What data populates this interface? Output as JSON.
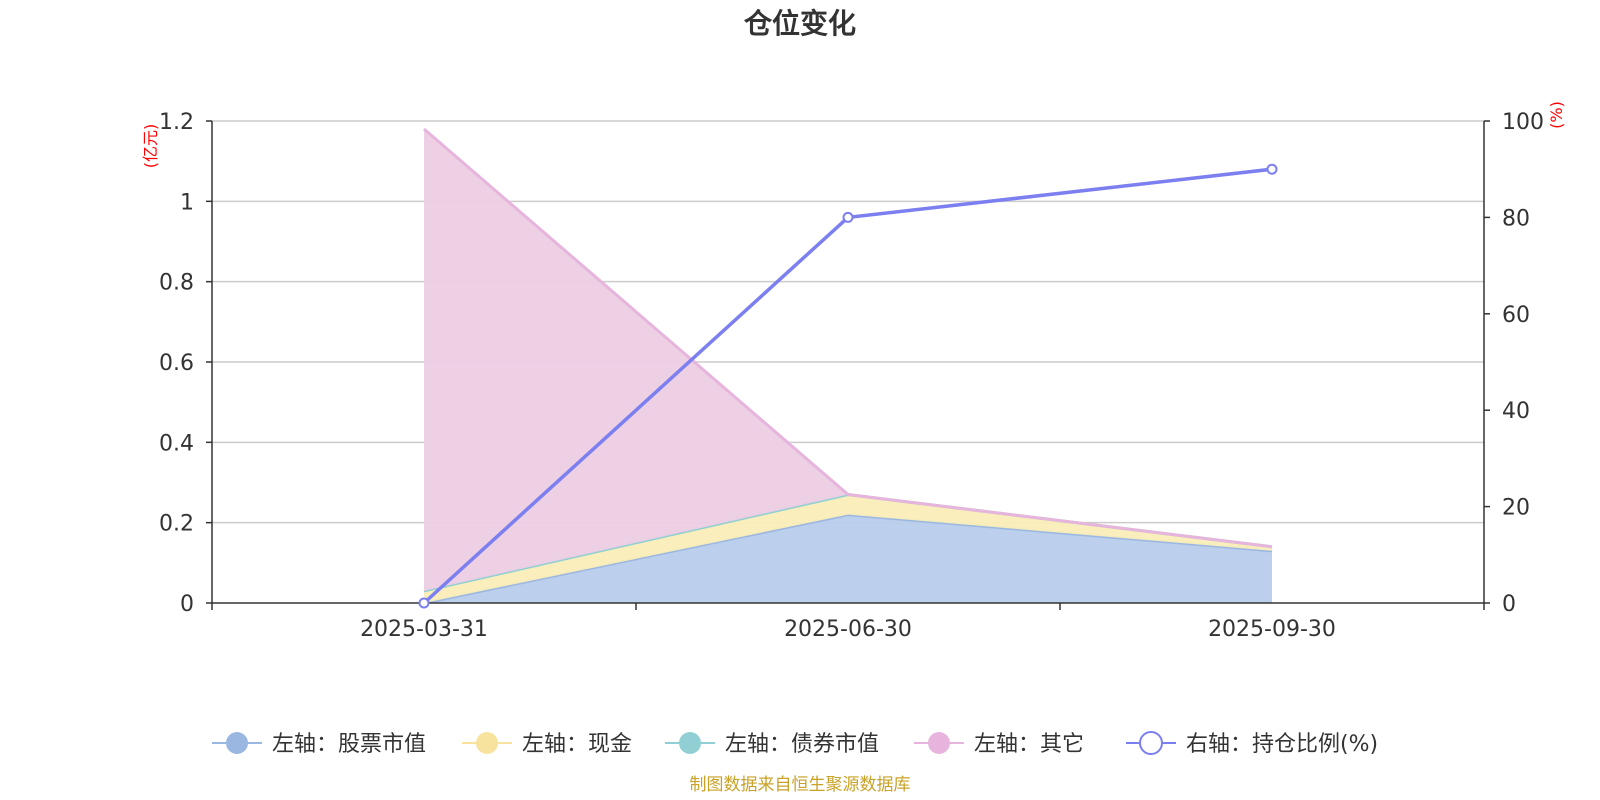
{
  "chart_data": {
    "type": "area",
    "title": "仓位变化",
    "categories": [
      "2025-03-31",
      "2025-06-30",
      "2025-09-30"
    ],
    "left_axis": {
      "unit": "(亿元)",
      "ylim": [
        0,
        1.2
      ],
      "ticks": [
        0,
        0.2,
        0.4,
        0.6,
        0.8,
        1,
        1.2
      ],
      "tick_labels": [
        "0",
        "0.2",
        "0.4",
        "0.6",
        "0.8",
        "1",
        "1.2"
      ]
    },
    "right_axis": {
      "unit": "(%)",
      "ylim": [
        0,
        100
      ],
      "ticks": [
        0,
        20,
        40,
        60,
        80,
        100
      ],
      "tick_labels": [
        "0",
        "20",
        "40",
        "60",
        "80",
        "100"
      ]
    },
    "series": [
      {
        "name": "左轴：股票市值",
        "axis": "left",
        "type": "stacked-area",
        "color": "#9ab7e1",
        "fill": "#b8cceb",
        "values": [
          0.0,
          0.22,
          0.13
        ]
      },
      {
        "name": "左轴：现金",
        "axis": "left",
        "type": "stacked-area",
        "color": "#f7e39e",
        "fill": "#faedb8",
        "values": [
          0.03,
          0.05,
          0.01
        ]
      },
      {
        "name": "左轴：债券市值",
        "axis": "left",
        "type": "stacked-area",
        "color": "#90d0d4",
        "fill": "#b5e2e4",
        "values": [
          0.0,
          0.0,
          0.0
        ]
      },
      {
        "name": "左轴：其它",
        "axis": "left",
        "type": "stacked-area",
        "color": "#e6b4dc",
        "fill": "#edcee4",
        "values": [
          1.15,
          0.0,
          0.0
        ]
      },
      {
        "name": "右轴：持仓比例(%)",
        "axis": "right",
        "type": "line",
        "color": "#7b7ff0",
        "values": [
          0.0,
          80.0,
          90.0
        ]
      }
    ],
    "source": "制图数据来自恒生聚源数据库"
  }
}
